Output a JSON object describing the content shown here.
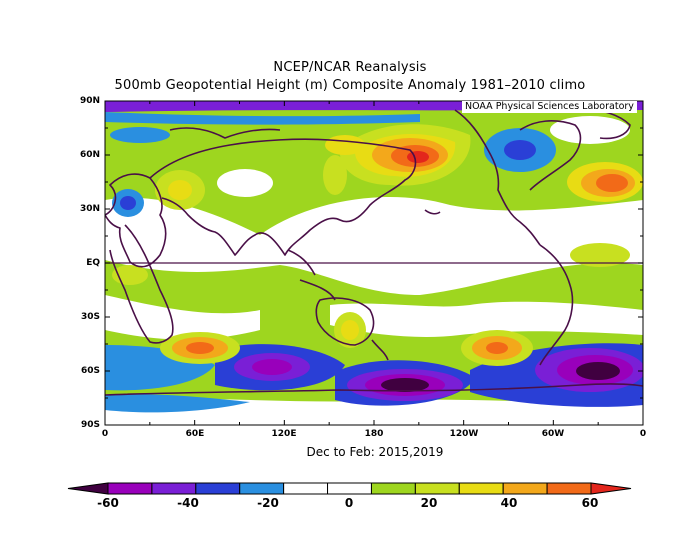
{
  "title_line1": "NCEP/NCAR Reanalysis",
  "title_line2": "500mb Geopotential Height (m) Composite Anomaly 1981–2010 climo",
  "credit": "NOAA Physical Sciences Laboratory",
  "period_label": "Dec to Feb: 2015,2019",
  "lat_labels": [
    "90N",
    "60N",
    "30N",
    "EQ",
    "30S",
    "60S",
    "90S"
  ],
  "lon_labels": [
    "0",
    "60E",
    "120E",
    "180",
    "120W",
    "60W",
    "0"
  ],
  "colorbar": {
    "tick_labels": [
      "-60",
      "-40",
      "-20",
      "0",
      "20",
      "40",
      "60"
    ],
    "levels": [
      -60,
      -50,
      -40,
      -30,
      -20,
      -10,
      0,
      10,
      20,
      30,
      40,
      50,
      60
    ],
    "colors": [
      "#400040",
      "#9900bb",
      "#7a1fd6",
      "#2a3fd6",
      "#2a8fe0",
      "#ffffff",
      "#ffffff",
      "#9ed61f",
      "#c8e020",
      "#e8dc14",
      "#f3a81b",
      "#f26a18",
      "#e3261c"
    ]
  },
  "colors": {
    "coastline": "#4a1048",
    "equator": "#4a1048"
  }
}
